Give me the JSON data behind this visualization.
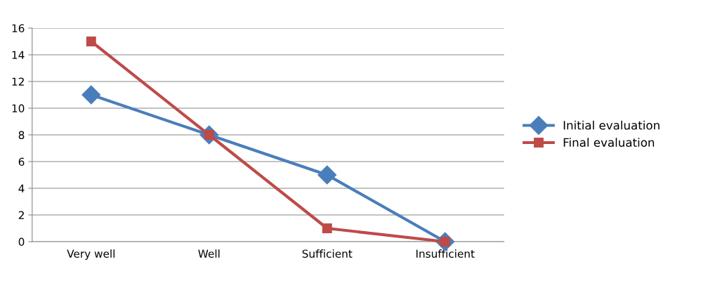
{
  "chart_data": {
    "type": "line",
    "categories": [
      "Very well",
      "Well",
      "Sufficient",
      "Insufficient"
    ],
    "series": [
      {
        "name": "Initial evaluation",
        "color": "#4a7ebb",
        "values": [
          11,
          8,
          5,
          0
        ],
        "marker": "diamond"
      },
      {
        "name": "Final evaluation",
        "color": "#be4b48",
        "values": [
          15,
          8,
          1,
          0
        ],
        "marker": "square"
      }
    ],
    "ylim": [
      0,
      16
    ],
    "yticks": [
      0,
      2,
      4,
      6,
      8,
      10,
      12,
      14,
      16
    ],
    "grid": "y",
    "legend": "right",
    "line_style": "solid"
  }
}
